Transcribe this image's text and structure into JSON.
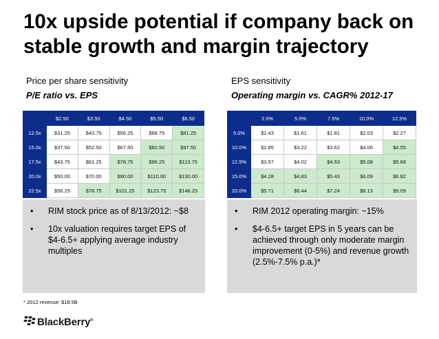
{
  "title": {
    "line1": "10x upside potential if company back on",
    "line2": "stable growth and margin trajectory"
  },
  "left_section": {
    "label": "Price per share sensitivity",
    "subtitle": "P/E ratio vs. EPS"
  },
  "right_section": {
    "label": "EPS sensitivity",
    "subtitle": "Operating margin vs. CAGR% 2012-17"
  },
  "chart_data": [
    {
      "type": "table",
      "title": "Price per share sensitivity",
      "subtitle": "P/E ratio vs. EPS",
      "columns": [
        "$2.50",
        "$3.50",
        "$4.50",
        "$5.50",
        "$6.50"
      ],
      "rows": [
        {
          "label": "12.5x",
          "cells": [
            "$31.25",
            "$43.75",
            "$56.25",
            "$68.75",
            "$81.25"
          ],
          "highlight": [
            false,
            false,
            false,
            false,
            true
          ]
        },
        {
          "label": "15.0x",
          "cells": [
            "$37.50",
            "$52.50",
            "$67.50",
            "$82.50",
            "$97.50"
          ],
          "highlight": [
            false,
            false,
            false,
            true,
            true
          ]
        },
        {
          "label": "17.5x",
          "cells": [
            "$43.75",
            "$61.25",
            "$78.75",
            "$96.25",
            "$113.75"
          ],
          "highlight": [
            false,
            false,
            true,
            true,
            true
          ]
        },
        {
          "label": "20.0x",
          "cells": [
            "$50.00",
            "$70.00",
            "$90.00",
            "$110.00",
            "$130.00"
          ],
          "highlight": [
            false,
            false,
            true,
            true,
            true
          ]
        },
        {
          "label": "22.5x",
          "cells": [
            "$56.25",
            "$78.75",
            "$101.25",
            "$123.75",
            "$146.25"
          ],
          "highlight": [
            false,
            true,
            true,
            true,
            true
          ]
        }
      ]
    },
    {
      "type": "table",
      "title": "EPS sensitivity",
      "subtitle": "Operating margin vs. CAGR% 2012-17",
      "columns": [
        "2.5%",
        "5.0%",
        "7.5%",
        "10.0%",
        "12.5%"
      ],
      "rows": [
        {
          "label": "5.0%",
          "cells": [
            "$1.43",
            "$1.61",
            "$1.81",
            "$2.03",
            "$2.27"
          ],
          "highlight": [
            false,
            false,
            false,
            false,
            false
          ]
        },
        {
          "label": "10.0%",
          "cells": [
            "$2.85",
            "$3.22",
            "$3.62",
            "$4.06",
            "$4.55"
          ],
          "highlight": [
            false,
            false,
            false,
            false,
            true
          ]
        },
        {
          "label": "12.5%",
          "cells": [
            "$3.57",
            "$4.02",
            "$4.53",
            "$5.08",
            "$5.68"
          ],
          "highlight": [
            false,
            false,
            true,
            true,
            true
          ]
        },
        {
          "label": "15.0%",
          "cells": [
            "$4.28",
            "$4.83",
            "$5.43",
            "$6.09",
            "$6.82"
          ],
          "highlight": [
            true,
            true,
            true,
            true,
            true
          ]
        },
        {
          "label": "20.0%",
          "cells": [
            "$5.71",
            "$6.44",
            "$7.24",
            "$8.13",
            "$9.09"
          ],
          "highlight": [
            true,
            true,
            true,
            true,
            true
          ]
        }
      ]
    }
  ],
  "left_bullets": [
    "RIM stock price as of 8/13/2012: ~$8",
    "10x valuation requires target EPS of $4-6.5+ applying average industry multiples"
  ],
  "right_bullets": [
    "RIM 2012 operating margin: ~15%",
    "$4-6.5+ target EPS in 5 years can be achieved through only moderate margin improvement (0-5%) and revenue growth (2.5%-7.5% p.a.)*"
  ],
  "bullet_symbol": "•",
  "footnote": "* 2012 revenue: $18.5B",
  "logo": {
    "text": "BlackBerry",
    "mark": "®"
  },
  "colors": {
    "header_blue": "#0d2d8c",
    "highlight_green": "#cdeacd",
    "box_gray": "#d9d9d9"
  }
}
